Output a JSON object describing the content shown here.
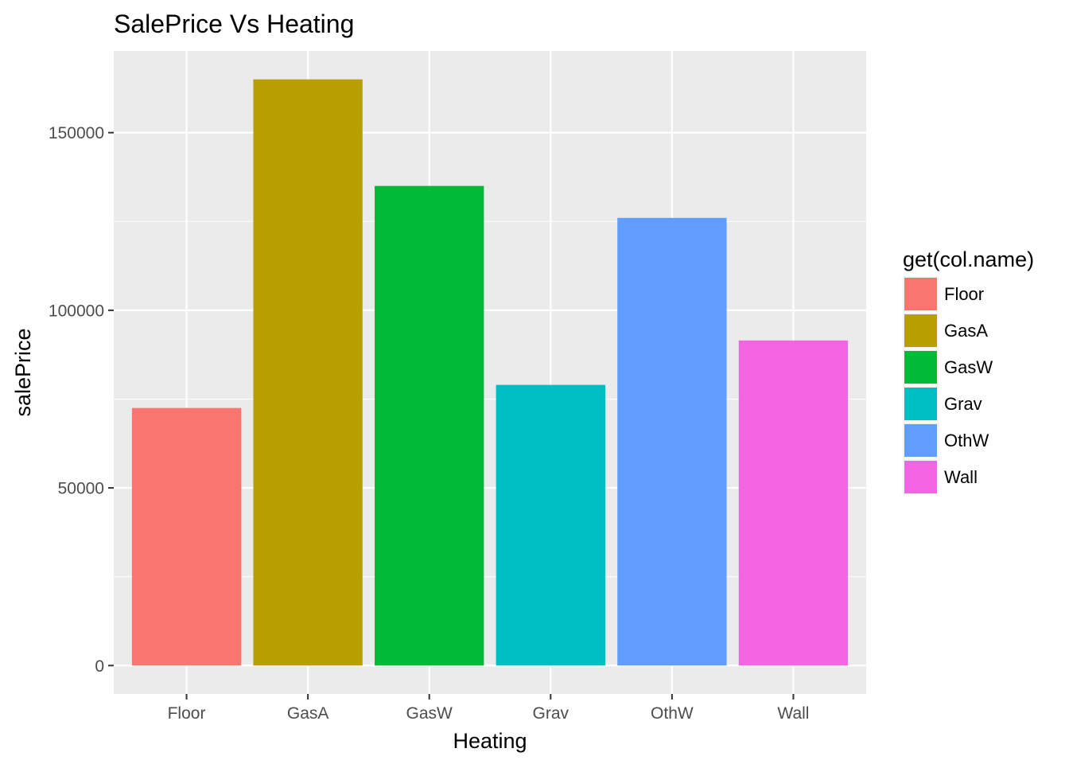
{
  "chart_data": {
    "type": "bar",
    "title": "SalePrice Vs Heating",
    "xlabel": "Heating",
    "ylabel": "salePrice",
    "categories": [
      "Floor",
      "GasA",
      "GasW",
      "Grav",
      "OthW",
      "Wall"
    ],
    "values": [
      72500,
      165000,
      135000,
      79000,
      126000,
      91500
    ],
    "colors": [
      "#F8766D",
      "#B79F00",
      "#00BA38",
      "#00BFC4",
      "#619CFF",
      "#F564E3"
    ],
    "ylim": [
      -8000,
      173000
    ],
    "yticks": [
      0,
      50000,
      100000,
      150000
    ],
    "ytick_labels": [
      "0",
      "50000",
      "100000",
      "150000"
    ],
    "grid": true,
    "panel_background": "#EBEBEB",
    "legend": {
      "title": "get(col.name)",
      "position": "right",
      "items": [
        "Floor",
        "GasA",
        "GasW",
        "Grav",
        "OthW",
        "Wall"
      ]
    }
  }
}
